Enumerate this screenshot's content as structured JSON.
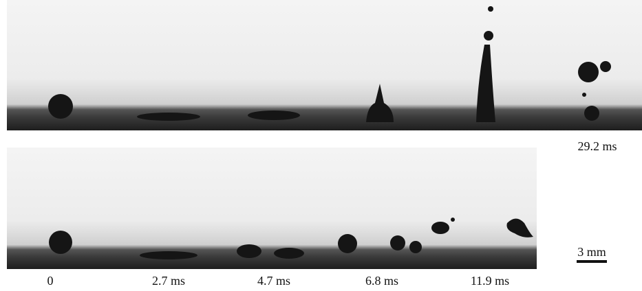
{
  "frame_labels": [
    "0",
    "2.7 ms",
    "4.7 ms",
    "6.8 ms",
    "11.9 ms"
  ],
  "final_label": "29.2 ms",
  "scale_bar": "3 mm"
}
